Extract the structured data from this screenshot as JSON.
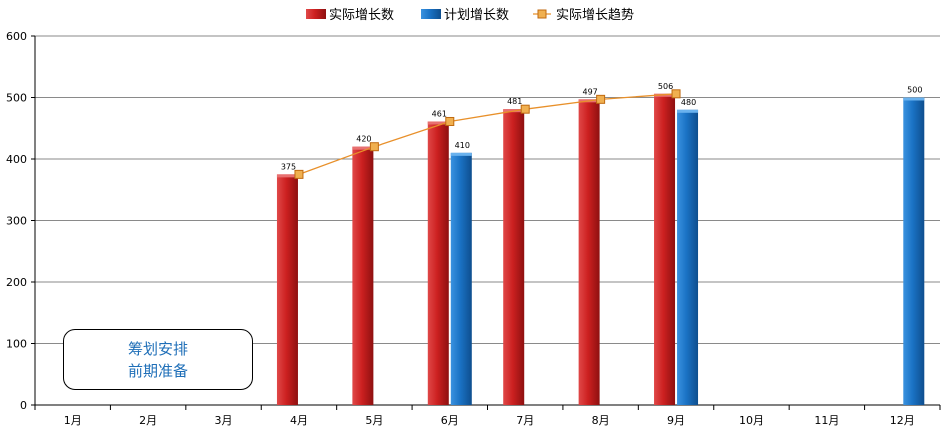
{
  "chart_data": {
    "type": "bar",
    "categories": [
      "1月",
      "2月",
      "3月",
      "4月",
      "5月",
      "6月",
      "7月",
      "8月",
      "9月",
      "10月",
      "11月",
      "12月"
    ],
    "series": [
      {
        "name": "实际增长数",
        "type": "bar",
        "color": "#c81e1e",
        "values": [
          null,
          null,
          null,
          375,
          420,
          461,
          481,
          497,
          506,
          null,
          null,
          null
        ]
      },
      {
        "name": "计划增长数",
        "type": "bar",
        "color": "#1a72c4",
        "values": [
          null,
          null,
          null,
          null,
          null,
          410,
          null,
          null,
          480,
          null,
          null,
          500
        ]
      },
      {
        "name": "实际增长趋势",
        "type": "line",
        "color": "#e8902a",
        "values": [
          null,
          null,
          null,
          375,
          420,
          461,
          481,
          497,
          506,
          null,
          null,
          null
        ]
      }
    ],
    "yticks": [
      0,
      100,
      200,
      300,
      400,
      500,
      600
    ],
    "ylim": [
      0,
      600
    ],
    "grid": true,
    "legend_position": "top-center",
    "annotation": [
      "筹划安排",
      "前期准备"
    ]
  }
}
